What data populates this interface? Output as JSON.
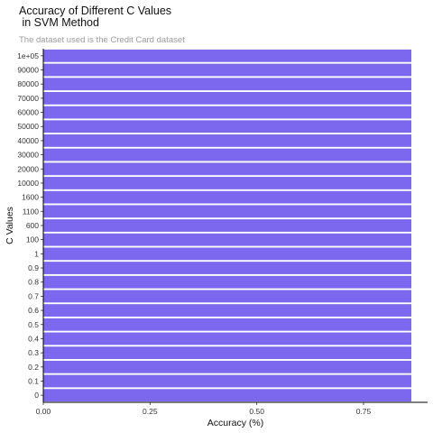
{
  "chart_data": {
    "type": "bar",
    "orientation": "horizontal",
    "title": "Accuracy of Different C Values\n in SVM Method",
    "subtitle": "The dataset used is the Credit Card dataset",
    "xlabel": "Accuracy (%)",
    "ylabel": "C Values",
    "categories": [
      "0",
      "0.1",
      "0.2",
      "0.3",
      "0.4",
      "0.5",
      "0.6",
      "0.7",
      "0.8",
      "0.9",
      "1",
      "100",
      "600",
      "1100",
      "1600",
      "10000",
      "20000",
      "30000",
      "40000",
      "50000",
      "60000",
      "70000",
      "80000",
      "90000",
      "1e+05"
    ],
    "values": [
      0.862,
      0.862,
      0.862,
      0.862,
      0.862,
      0.862,
      0.862,
      0.862,
      0.862,
      0.862,
      0.862,
      0.862,
      0.862,
      0.862,
      0.862,
      0.862,
      0.862,
      0.862,
      0.862,
      0.862,
      0.862,
      0.862,
      0.862,
      0.862,
      0.862
    ],
    "xlim": [
      0,
      0.9
    ],
    "xticks": [
      0,
      0.25,
      0.5,
      0.75
    ],
    "xtick_labels": [
      "0.00",
      "0.25",
      "0.50",
      "0.75"
    ],
    "bar_color": "#7b68ee",
    "grid": false,
    "legend": "none"
  }
}
